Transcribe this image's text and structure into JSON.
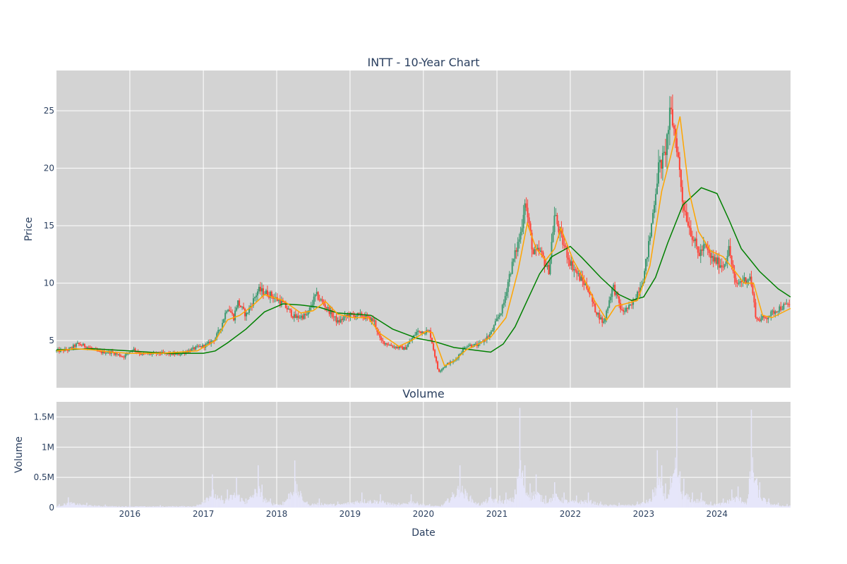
{
  "chart_data": {
    "type": "candlestick",
    "title": "INTT - 10-Year Chart",
    "price_panel": {
      "ylabel": "Price",
      "ylim": [
        0.9,
        28.5
      ],
      "yticks": [
        5,
        10,
        15,
        20,
        25
      ],
      "grid": true,
      "background": "#d3d3d3"
    },
    "volume_panel": {
      "title": "Volume",
      "ylabel": "Volume",
      "ylim": [
        0,
        1750000
      ],
      "yticks": [
        0,
        500000,
        1000000,
        1500000
      ],
      "ytick_labels": [
        "0",
        "0.5M",
        "1M",
        "1.5M"
      ],
      "grid": true,
      "background": "#d3d3d3",
      "bar_color": "#e6e6fa"
    },
    "xlabel": "Date",
    "x_range": [
      "2015-01-01",
      "2025-01-01"
    ],
    "x_ticks": [
      "2016-01-01",
      "2017-01-01",
      "2018-01-01",
      "2019-01-01",
      "2020-01-01",
      "2021-01-01",
      "2022-01-01",
      "2023-01-01",
      "2024-01-01"
    ],
    "x_tick_labels": [
      "2016",
      "2017",
      "2018",
      "2019",
      "2020",
      "2021",
      "2022",
      "2023",
      "2024"
    ],
    "colors": {
      "increasing": "#3d9970",
      "decreasing": "#ff4136",
      "ma_short": "#ffa500",
      "ma_long": "#008000"
    },
    "price_series": [
      [
        "2015-01-01",
        4.1
      ],
      [
        "2015-03-01",
        4.2
      ],
      [
        "2015-04-15",
        4.7
      ],
      [
        "2015-06-01",
        4.5
      ],
      [
        "2015-08-01",
        4.0
      ],
      [
        "2015-10-01",
        4.0
      ],
      [
        "2015-12-01",
        3.6
      ],
      [
        "2016-01-15",
        4.3
      ],
      [
        "2016-03-01",
        3.8
      ],
      [
        "2016-06-01",
        3.9
      ],
      [
        "2016-09-01",
        3.8
      ],
      [
        "2016-12-01",
        4.4
      ],
      [
        "2017-01-15",
        4.6
      ],
      [
        "2017-03-01",
        5.2
      ],
      [
        "2017-04-01",
        6.3
      ],
      [
        "2017-05-01",
        8.0
      ],
      [
        "2017-06-01",
        7.0
      ],
      [
        "2017-06-20",
        8.4
      ],
      [
        "2017-08-01",
        7.2
      ],
      [
        "2017-10-01",
        9.4
      ],
      [
        "2017-12-01",
        9.0
      ],
      [
        "2018-02-01",
        8.2
      ],
      [
        "2018-04-01",
        7.0
      ],
      [
        "2018-06-01",
        7.2
      ],
      [
        "2018-07-15",
        9.0
      ],
      [
        "2018-09-01",
        8.0
      ],
      [
        "2018-11-01",
        6.6
      ],
      [
        "2018-12-20",
        7.2
      ],
      [
        "2019-03-01",
        7.2
      ],
      [
        "2019-05-01",
        6.7
      ],
      [
        "2019-06-01",
        5.0
      ],
      [
        "2019-08-01",
        4.5
      ],
      [
        "2019-10-01",
        4.3
      ],
      [
        "2019-12-01",
        5.8
      ],
      [
        "2020-02-01",
        5.8
      ],
      [
        "2020-03-15",
        2.3
      ],
      [
        "2020-05-01",
        3.0
      ],
      [
        "2020-06-01",
        3.2
      ],
      [
        "2020-08-01",
        4.6
      ],
      [
        "2020-10-01",
        4.6
      ],
      [
        "2020-12-01",
        5.6
      ],
      [
        "2021-02-01",
        8.0
      ],
      [
        "2021-03-01",
        10.5
      ],
      [
        "2021-04-01",
        12.5
      ],
      [
        "2021-05-01",
        14.5
      ],
      [
        "2021-05-20",
        17.3
      ],
      [
        "2021-07-01",
        12.5
      ],
      [
        "2021-08-01",
        12.8
      ],
      [
        "2021-09-15",
        11.0
      ],
      [
        "2021-10-15",
        16.0
      ],
      [
        "2021-11-15",
        14.0
      ],
      [
        "2022-01-01",
        11.8
      ],
      [
        "2022-02-15",
        10.5
      ],
      [
        "2022-04-01",
        9.5
      ],
      [
        "2022-05-01",
        7.8
      ],
      [
        "2022-06-15",
        6.5
      ],
      [
        "2022-08-01",
        9.8
      ],
      [
        "2022-09-15",
        7.5
      ],
      [
        "2022-11-01",
        8.0
      ],
      [
        "2023-01-01",
        10.5
      ],
      [
        "2023-02-01",
        14.0
      ],
      [
        "2023-03-15",
        20.0
      ],
      [
        "2023-04-15",
        21.0
      ],
      [
        "2023-05-15",
        25.0
      ],
      [
        "2023-06-15",
        22.0
      ],
      [
        "2023-07-15",
        17.0
      ],
      [
        "2023-08-15",
        15.0
      ],
      [
        "2023-10-01",
        12.5
      ],
      [
        "2023-11-01",
        13.2
      ],
      [
        "2023-12-01",
        12.2
      ],
      [
        "2024-02-01",
        11.5
      ],
      [
        "2024-03-01",
        13.0
      ],
      [
        "2024-04-01",
        9.8
      ],
      [
        "2024-05-01",
        10.2
      ],
      [
        "2024-06-15",
        10.5
      ],
      [
        "2024-07-15",
        6.8
      ],
      [
        "2024-09-01",
        7.0
      ],
      [
        "2024-11-01",
        7.8
      ],
      [
        "2025-01-01",
        8.2
      ]
    ],
    "ma_short": [
      [
        "2015-01-01",
        4.1
      ],
      [
        "2015-04-01",
        4.3
      ],
      [
        "2015-07-01",
        4.2
      ],
      [
        "2015-10-01",
        4.0
      ],
      [
        "2016-01-01",
        3.9
      ],
      [
        "2016-06-01",
        3.9
      ],
      [
        "2016-12-01",
        4.1
      ],
      [
        "2017-03-01",
        5.0
      ],
      [
        "2017-05-01",
        6.8
      ],
      [
        "2017-07-01",
        7.2
      ],
      [
        "2017-09-01",
        8.0
      ],
      [
        "2017-11-01",
        9.0
      ],
      [
        "2018-02-01",
        8.5
      ],
      [
        "2018-05-01",
        7.4
      ],
      [
        "2018-07-01",
        7.6
      ],
      [
        "2018-09-01",
        8.4
      ],
      [
        "2018-11-01",
        7.3
      ],
      [
        "2019-01-15",
        7.0
      ],
      [
        "2019-04-01",
        7.0
      ],
      [
        "2019-06-01",
        5.6
      ],
      [
        "2019-09-01",
        4.5
      ],
      [
        "2019-11-01",
        5.0
      ],
      [
        "2020-01-15",
        5.8
      ],
      [
        "2020-02-15",
        5.7
      ],
      [
        "2020-04-15",
        2.8
      ],
      [
        "2020-06-01",
        3.2
      ],
      [
        "2020-08-01",
        4.2
      ],
      [
        "2020-10-01",
        4.7
      ],
      [
        "2020-12-01",
        5.3
      ],
      [
        "2021-02-15",
        7.0
      ],
      [
        "2021-04-15",
        11.0
      ],
      [
        "2021-06-01",
        15.2
      ],
      [
        "2021-07-15",
        13.0
      ],
      [
        "2021-09-01",
        12.0
      ],
      [
        "2021-10-15",
        13.0
      ],
      [
        "2021-11-15",
        14.8
      ],
      [
        "2022-01-15",
        12.0
      ],
      [
        "2022-03-15",
        10.2
      ],
      [
        "2022-05-01",
        8.5
      ],
      [
        "2022-07-01",
        6.8
      ],
      [
        "2022-08-15",
        8.0
      ],
      [
        "2022-10-01",
        8.2
      ],
      [
        "2022-12-01",
        8.5
      ],
      [
        "2023-02-01",
        11.5
      ],
      [
        "2023-04-01",
        18.0
      ],
      [
        "2023-05-15",
        21.0
      ],
      [
        "2023-07-01",
        24.5
      ],
      [
        "2023-08-15",
        18.0
      ],
      [
        "2023-10-01",
        14.5
      ],
      [
        "2023-12-01",
        12.8
      ],
      [
        "2024-02-01",
        12.3
      ],
      [
        "2024-04-01",
        11.0
      ],
      [
        "2024-05-15",
        10.0
      ],
      [
        "2024-07-01",
        10.0
      ],
      [
        "2024-08-15",
        7.2
      ],
      [
        "2024-10-01",
        7.0
      ],
      [
        "2025-01-01",
        7.8
      ]
    ],
    "ma_long": [
      [
        "2015-01-01",
        4.2
      ],
      [
        "2015-07-01",
        4.3
      ],
      [
        "2016-01-01",
        4.1
      ],
      [
        "2016-07-01",
        3.9
      ],
      [
        "2017-01-01",
        3.9
      ],
      [
        "2017-03-01",
        4.1
      ],
      [
        "2017-05-01",
        4.8
      ],
      [
        "2017-08-01",
        6.0
      ],
      [
        "2017-11-01",
        7.5
      ],
      [
        "2018-02-01",
        8.2
      ],
      [
        "2018-05-01",
        8.1
      ],
      [
        "2018-08-01",
        7.9
      ],
      [
        "2018-11-01",
        7.4
      ],
      [
        "2019-02-01",
        7.3
      ],
      [
        "2019-04-15",
        7.2
      ],
      [
        "2019-08-01",
        6.0
      ],
      [
        "2019-12-01",
        5.2
      ],
      [
        "2020-03-01",
        4.9
      ],
      [
        "2020-06-01",
        4.4
      ],
      [
        "2020-09-01",
        4.2
      ],
      [
        "2020-12-01",
        4.0
      ],
      [
        "2021-02-01",
        4.7
      ],
      [
        "2021-04-01",
        6.2
      ],
      [
        "2021-06-01",
        8.5
      ],
      [
        "2021-08-01",
        10.8
      ],
      [
        "2021-10-01",
        12.3
      ],
      [
        "2022-01-01",
        13.2
      ],
      [
        "2022-03-01",
        12.2
      ],
      [
        "2022-06-01",
        10.5
      ],
      [
        "2022-09-01",
        9.0
      ],
      [
        "2022-11-01",
        8.5
      ],
      [
        "2023-01-01",
        8.8
      ],
      [
        "2023-03-01",
        10.5
      ],
      [
        "2023-05-01",
        13.5
      ],
      [
        "2023-07-15",
        16.8
      ],
      [
        "2023-10-15",
        18.3
      ],
      [
        "2024-01-01",
        17.8
      ],
      [
        "2024-03-01",
        15.5
      ],
      [
        "2024-05-01",
        13.0
      ],
      [
        "2024-08-01",
        11.0
      ],
      [
        "2024-11-01",
        9.5
      ],
      [
        "2025-01-01",
        8.8
      ]
    ],
    "volume_series": [
      [
        "2015-01-15",
        60000
      ],
      [
        "2015-03-01",
        170000
      ],
      [
        "2015-06-01",
        80000
      ],
      [
        "2015-09-01",
        50000
      ],
      [
        "2016-01-01",
        40000
      ],
      [
        "2016-06-01",
        40000
      ],
      [
        "2016-12-01",
        50000
      ],
      [
        "2017-02-15",
        550000
      ],
      [
        "2017-04-01",
        200000
      ],
      [
        "2017-05-01",
        300000
      ],
      [
        "2017-06-15",
        500000
      ],
      [
        "2017-08-01",
        150000
      ],
      [
        "2017-10-01",
        700000
      ],
      [
        "2017-10-20",
        380000
      ],
      [
        "2017-12-01",
        150000
      ],
      [
        "2018-02-01",
        100000
      ],
      [
        "2018-04-01",
        780000
      ],
      [
        "2018-06-01",
        100000
      ],
      [
        "2018-08-01",
        150000
      ],
      [
        "2018-11-01",
        100000
      ],
      [
        "2019-03-01",
        250000
      ],
      [
        "2019-06-01",
        220000
      ],
      [
        "2019-09-01",
        80000
      ],
      [
        "2019-11-01",
        220000
      ],
      [
        "2020-02-01",
        60000
      ],
      [
        "2020-04-01",
        50000
      ],
      [
        "2020-07-01",
        700000
      ],
      [
        "2020-10-01",
        80000
      ],
      [
        "2020-12-01",
        330000
      ],
      [
        "2021-01-15",
        200000
      ],
      [
        "2021-02-15",
        250000
      ],
      [
        "2021-04-01",
        300000
      ],
      [
        "2021-04-25",
        1650000
      ],
      [
        "2021-05-20",
        700000
      ],
      [
        "2021-06-15",
        400000
      ],
      [
        "2021-07-15",
        550000
      ],
      [
        "2021-09-01",
        200000
      ],
      [
        "2021-10-15",
        420000
      ],
      [
        "2021-12-01",
        250000
      ],
      [
        "2022-02-01",
        200000
      ],
      [
        "2022-04-01",
        250000
      ],
      [
        "2022-06-01",
        100000
      ],
      [
        "2022-09-01",
        80000
      ],
      [
        "2022-12-01",
        100000
      ],
      [
        "2023-02-15",
        300000
      ],
      [
        "2023-03-10",
        950000
      ],
      [
        "2023-04-01",
        700000
      ],
      [
        "2023-04-20",
        400000
      ],
      [
        "2023-05-15",
        520000
      ],
      [
        "2023-06-15",
        1650000
      ],
      [
        "2023-07-01",
        600000
      ],
      [
        "2023-07-20",
        480000
      ],
      [
        "2023-09-01",
        250000
      ],
      [
        "2023-10-15",
        250000
      ],
      [
        "2023-12-01",
        100000
      ],
      [
        "2024-02-01",
        150000
      ],
      [
        "2024-03-15",
        300000
      ],
      [
        "2024-04-15",
        350000
      ],
      [
        "2024-06-01",
        150000
      ],
      [
        "2024-06-20",
        1620000
      ],
      [
        "2024-08-01",
        420000
      ],
      [
        "2024-09-15",
        150000
      ],
      [
        "2024-11-01",
        80000
      ],
      [
        "2024-12-15",
        60000
      ]
    ]
  }
}
